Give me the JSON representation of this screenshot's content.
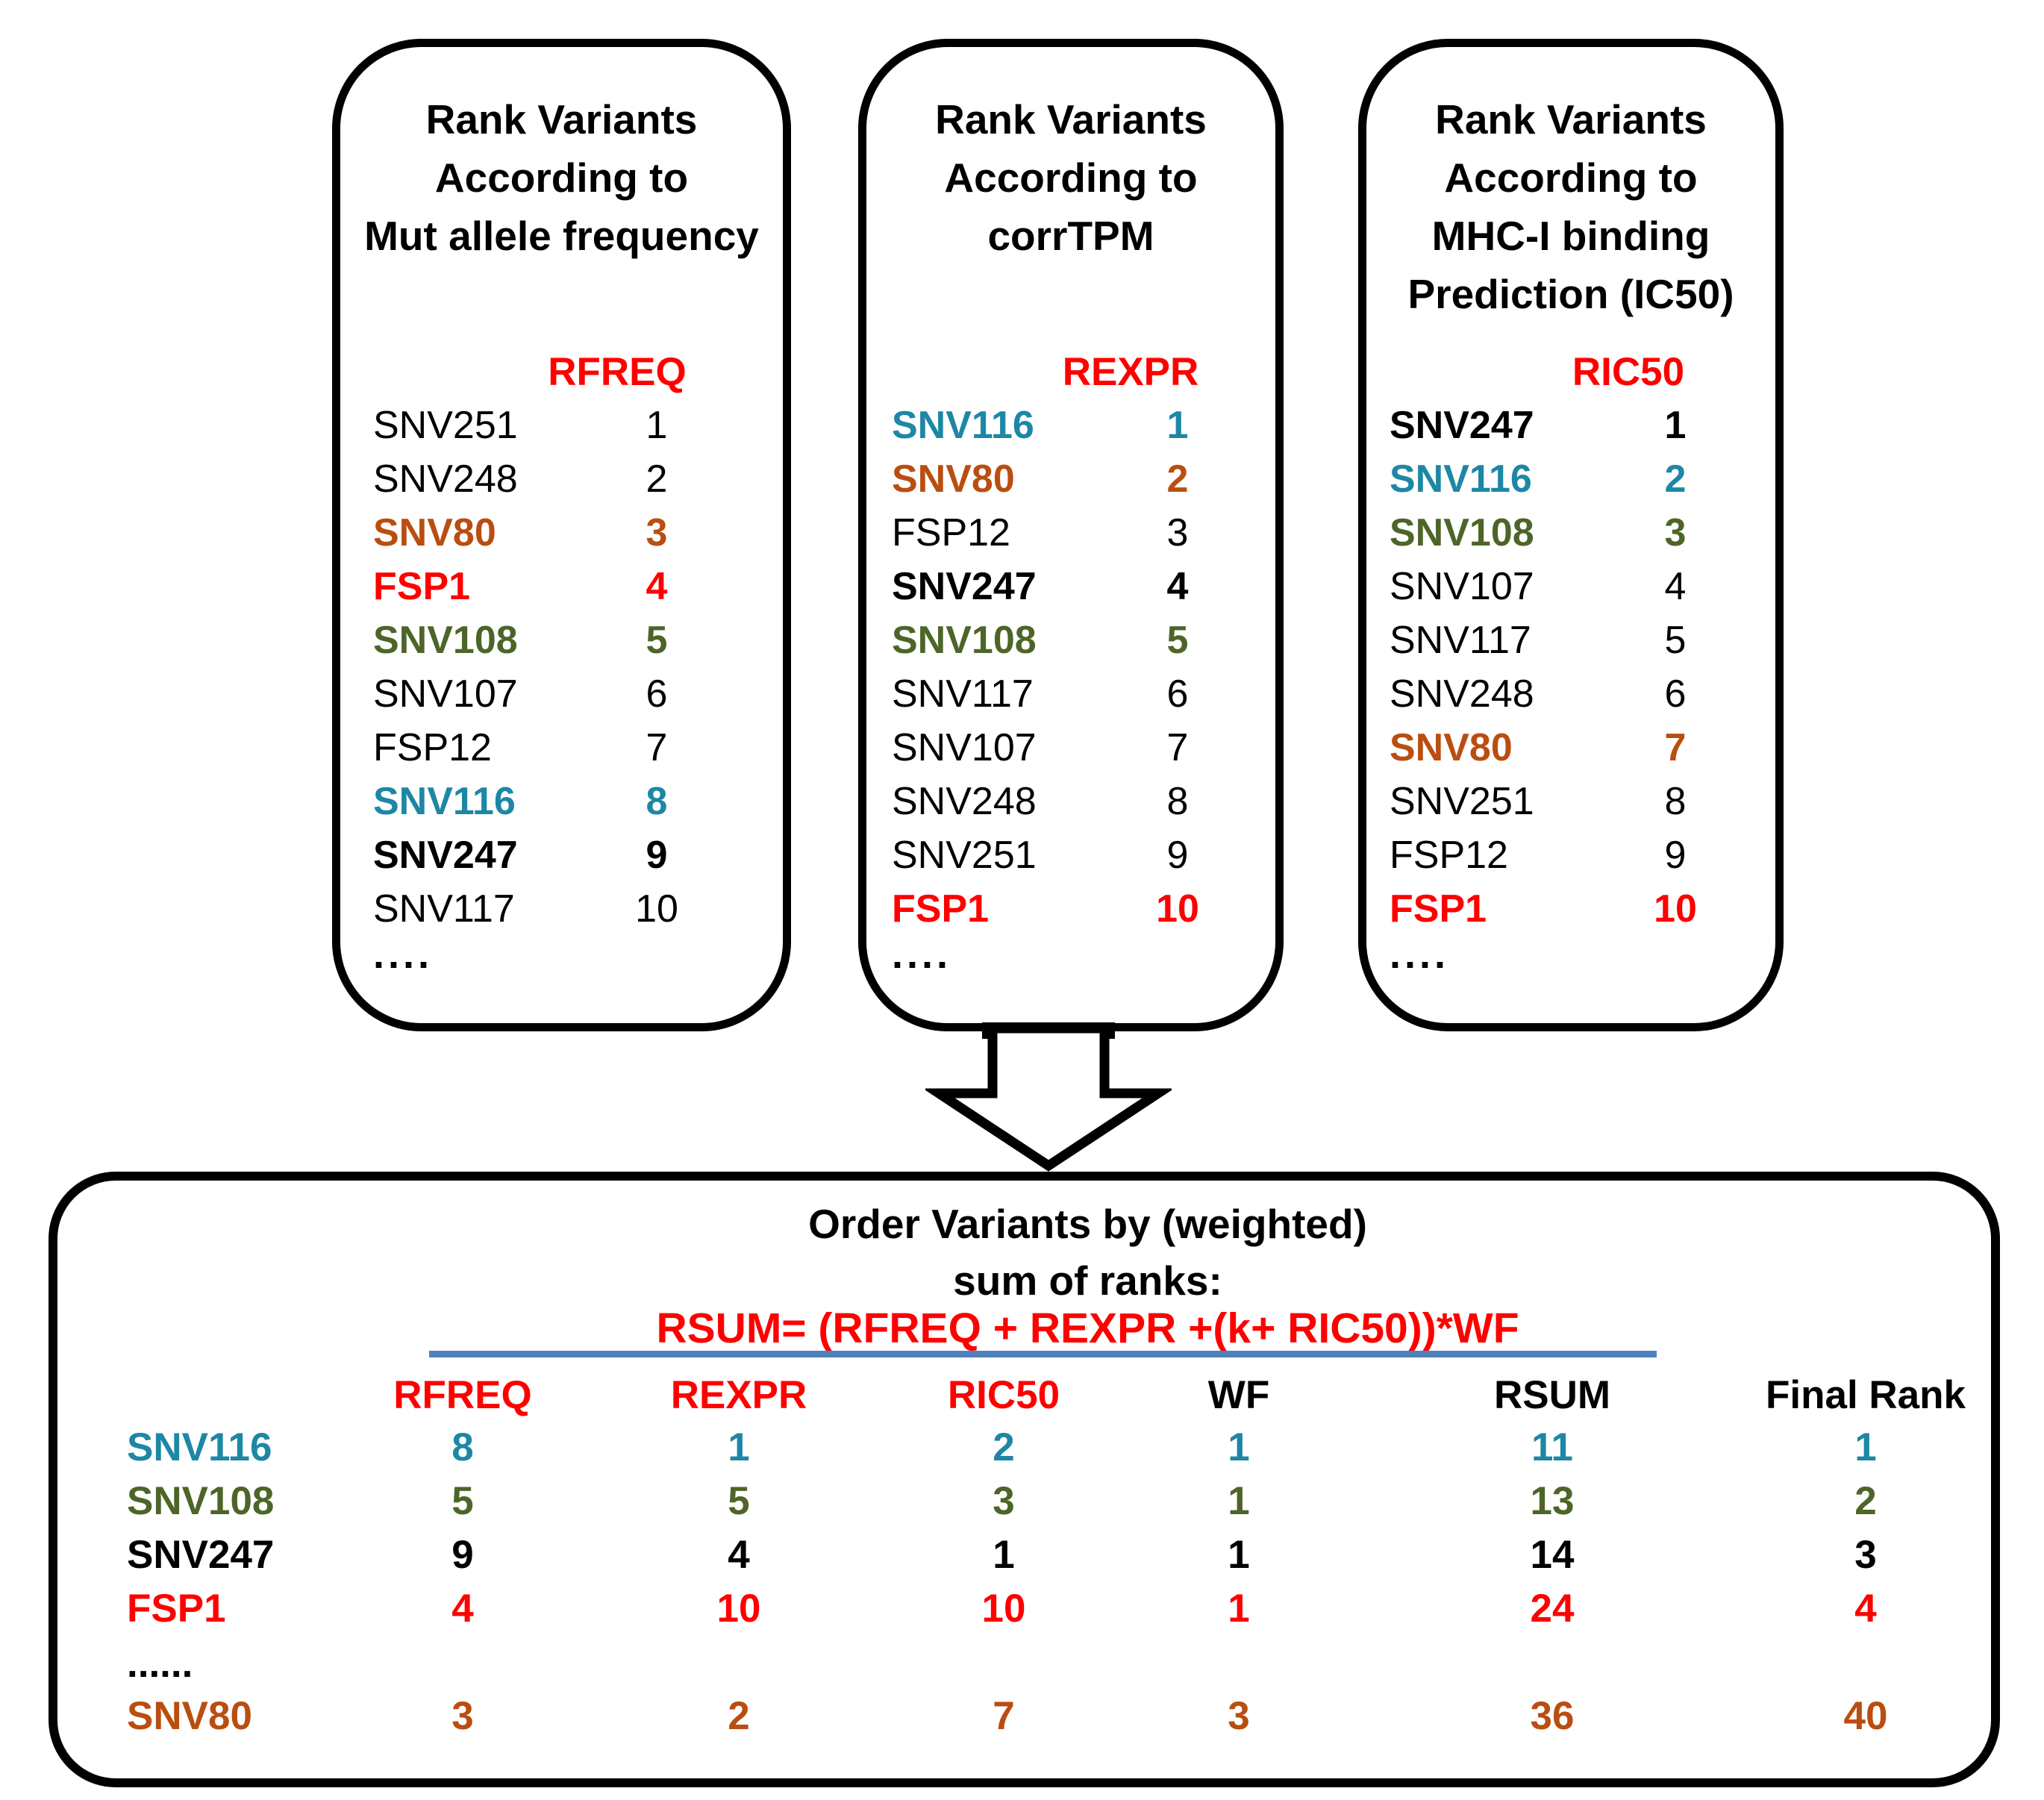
{
  "figure": {
    "colors": {
      "black": "#000000",
      "red": "#FF0000",
      "teal": "#1D87A5",
      "green": "#4D6528",
      "orange": "#B94E10",
      "divider_blue": "#4F81BD"
    },
    "arrow_icon": "down-block-arrow",
    "panels": [
      {
        "title_lines": [
          "Rank Variants",
          "According to",
          "Mut allele frequency"
        ],
        "rank_header": "RFREQ",
        "ellipsis": "....",
        "rows": [
          {
            "name": "SNV251",
            "rank": "1",
            "color": "black",
            "bold": false
          },
          {
            "name": "SNV248",
            "rank": "2",
            "color": "black",
            "bold": false
          },
          {
            "name": "SNV80",
            "rank": "3",
            "color": "orange",
            "bold": true
          },
          {
            "name": "FSP1",
            "rank": "4",
            "color": "red",
            "bold": true
          },
          {
            "name": "SNV108",
            "rank": "5",
            "color": "green",
            "bold": true
          },
          {
            "name": "SNV107",
            "rank": "6",
            "color": "black",
            "bold": false
          },
          {
            "name": "FSP12",
            "rank": "7",
            "color": "black",
            "bold": false
          },
          {
            "name": "SNV116",
            "rank": "8",
            "color": "teal",
            "bold": true
          },
          {
            "name": "SNV247",
            "rank": "9",
            "color": "black",
            "bold": true
          },
          {
            "name": "SNV117",
            "rank": "10",
            "color": "black",
            "bold": false
          }
        ]
      },
      {
        "title_lines": [
          "Rank Variants",
          "According to",
          "corrTPM"
        ],
        "rank_header": "REXPR",
        "ellipsis": "....",
        "rows": [
          {
            "name": "SNV116",
            "rank": "1",
            "color": "teal",
            "bold": true
          },
          {
            "name": "SNV80",
            "rank": "2",
            "color": "orange",
            "bold": true
          },
          {
            "name": "FSP12",
            "rank": "3",
            "color": "black",
            "bold": false
          },
          {
            "name": "SNV247",
            "rank": "4",
            "color": "black",
            "bold": true
          },
          {
            "name": "SNV108",
            "rank": "5",
            "color": "green",
            "bold": true
          },
          {
            "name": "SNV117",
            "rank": "6",
            "color": "black",
            "bold": false
          },
          {
            "name": "SNV107",
            "rank": "7",
            "color": "black",
            "bold": false
          },
          {
            "name": "SNV248",
            "rank": "8",
            "color": "black",
            "bold": false
          },
          {
            "name": "SNV251",
            "rank": "9",
            "color": "black",
            "bold": false
          },
          {
            "name": "FSP1",
            "rank": "10",
            "color": "red",
            "bold": true
          }
        ]
      },
      {
        "title_lines": [
          "Rank Variants",
          "According to",
          "MHC-I binding",
          "Prediction (IC50)"
        ],
        "rank_header": "RIC50",
        "ellipsis": "....",
        "rows": [
          {
            "name": "SNV247",
            "rank": "1",
            "color": "black",
            "bold": true
          },
          {
            "name": "SNV116",
            "rank": "2",
            "color": "teal",
            "bold": true
          },
          {
            "name": "SNV108",
            "rank": "3",
            "color": "green",
            "bold": true
          },
          {
            "name": "SNV107",
            "rank": "4",
            "color": "black",
            "bold": false
          },
          {
            "name": "SNV117",
            "rank": "5",
            "color": "black",
            "bold": false
          },
          {
            "name": "SNV248",
            "rank": "6",
            "color": "black",
            "bold": false
          },
          {
            "name": "SNV80",
            "rank": "7",
            "color": "orange",
            "bold": true
          },
          {
            "name": "SNV251",
            "rank": "8",
            "color": "black",
            "bold": false
          },
          {
            "name": "FSP12",
            "rank": "9",
            "color": "black",
            "bold": false
          },
          {
            "name": "FSP1",
            "rank": "10",
            "color": "red",
            "bold": true
          }
        ]
      }
    ],
    "summary": {
      "title_lines": [
        "Order Variants by (weighted)",
        "sum of ranks:"
      ],
      "formula": "RSUM= (RFREQ + REXPR +(k+ RIC50))*WF",
      "columns": [
        {
          "label": "RFREQ",
          "color": "red"
        },
        {
          "label": "REXPR",
          "color": "red"
        },
        {
          "label": "RIC50",
          "color": "red"
        },
        {
          "label": "WF",
          "color": "black"
        },
        {
          "label": "RSUM",
          "color": "black"
        },
        {
          "label": "Final Rank",
          "color": "black"
        }
      ],
      "rows": [
        {
          "name": "SNV116",
          "color": "teal",
          "values": [
            "8",
            "1",
            "2",
            "1",
            "11",
            "1"
          ]
        },
        {
          "name": "SNV108",
          "color": "green",
          "values": [
            "5",
            "5",
            "3",
            "1",
            "13",
            "2"
          ]
        },
        {
          "name": "SNV247",
          "color": "black",
          "values": [
            "9",
            "4",
            "1",
            "1",
            "14",
            "3"
          ]
        },
        {
          "name": "FSP1",
          "color": "red",
          "values": [
            "4",
            "10",
            "10",
            "1",
            "24",
            "4"
          ]
        },
        {
          "name": "......",
          "color": "black",
          "values": [],
          "is_ellipsis": true
        },
        {
          "name": "SNV80",
          "color": "orange",
          "values": [
            "3",
            "2",
            "7",
            "3",
            "36",
            "40"
          ]
        }
      ]
    }
  }
}
